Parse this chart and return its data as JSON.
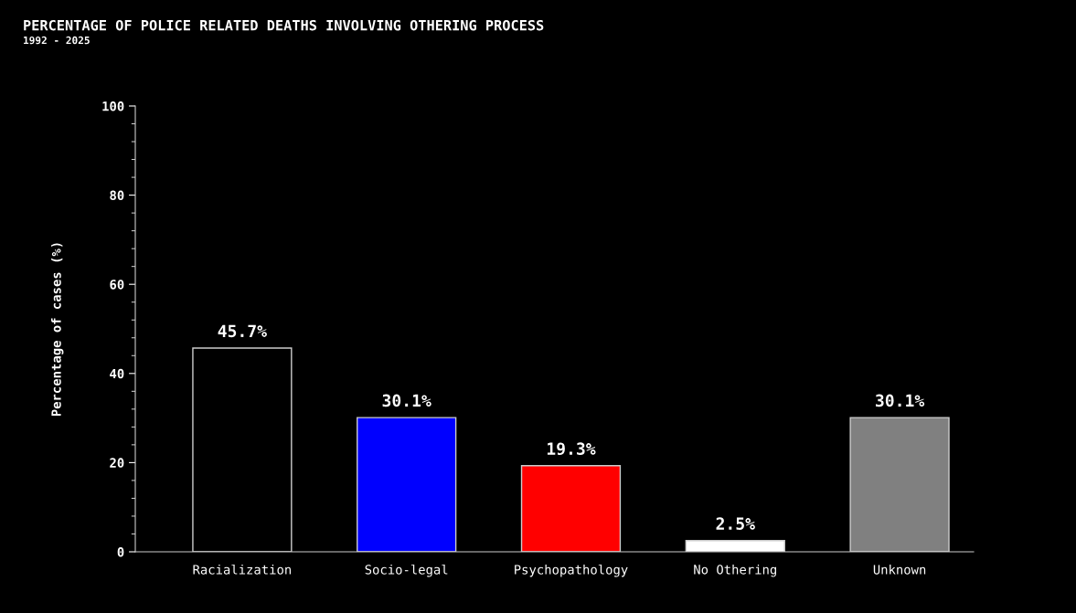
{
  "chart_data": {
    "type": "bar",
    "title": "PERCENTAGE OF POLICE RELATED DEATHS INVOLVING OTHERING PROCESS",
    "subtitle": "1992 - 2025",
    "ylabel": "Percentage of cases (%)",
    "categories": [
      "Racialization",
      "Socio-legal",
      "Psychopathology",
      "No Othering",
      "Unknown"
    ],
    "values": [
      45.7,
      30.1,
      19.3,
      2.5,
      30.1
    ],
    "colors": [
      "#000000",
      "#0000ff",
      "#ff0000",
      "#ffffff",
      "#808080"
    ],
    "value_labels": [
      "45.7%",
      "30.1%",
      "19.3%",
      "2.5%",
      "30.1%"
    ],
    "ylim": [
      0,
      100
    ],
    "yticks": [
      0,
      20,
      40,
      60,
      80,
      100
    ],
    "grid": false,
    "legend": false
  }
}
